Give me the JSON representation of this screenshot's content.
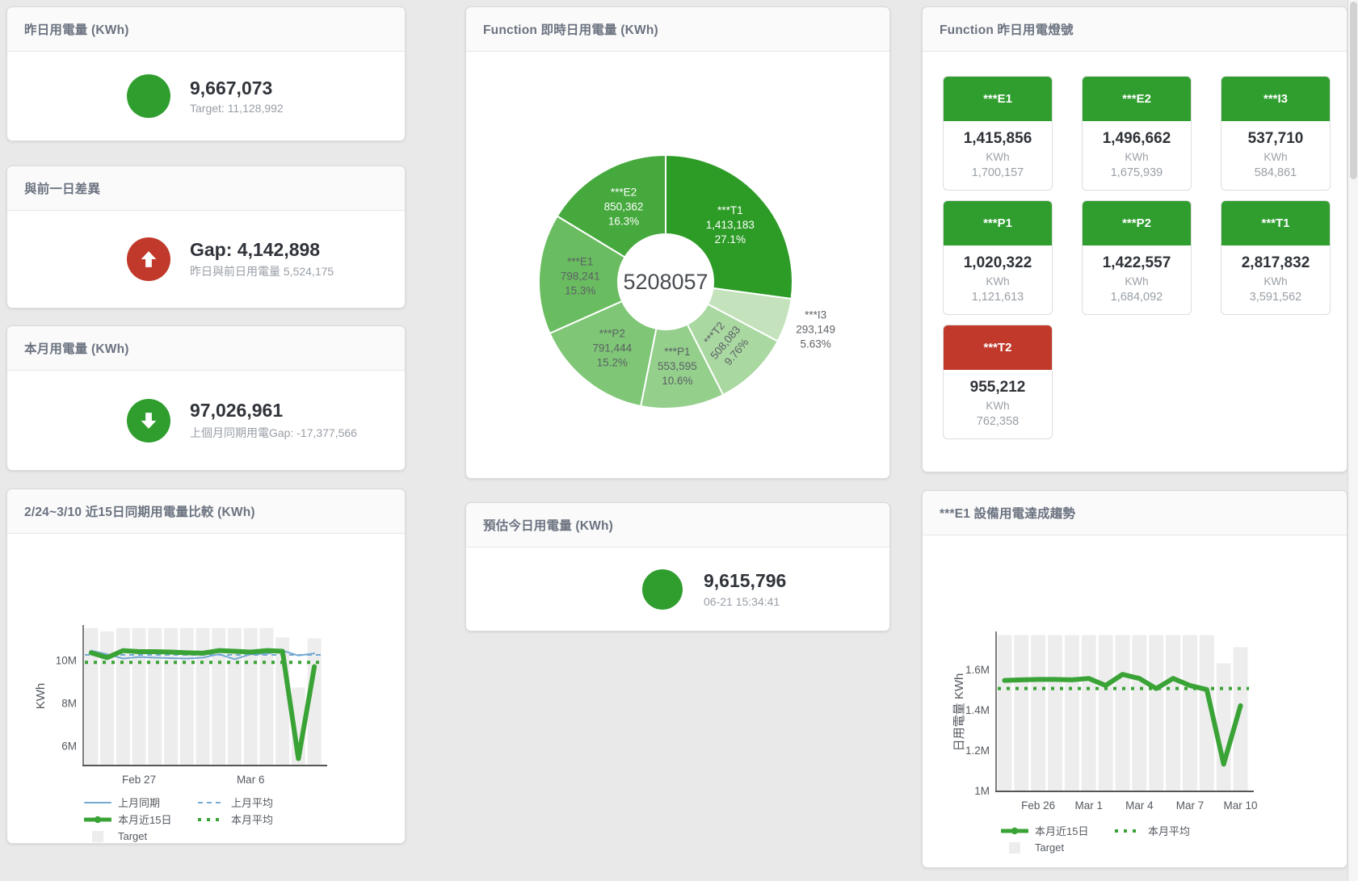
{
  "colors": {
    "green": "#2f9e2f",
    "red": "#c0392b",
    "line_green": "#3aa336",
    "line_blue": "#74a9d3",
    "bar_gray": "#ededed",
    "axis": "#555555",
    "label_dark": "#5b6166",
    "label_white": "#ffffff"
  },
  "panels": {
    "yesterday": {
      "title": "昨日用電量 (KWh)",
      "value": "9,667,073",
      "subtitle": "Target: 11,128,992",
      "status": "green"
    },
    "gap_prev_day": {
      "title": "與前一日差異",
      "value": "Gap: 4,142,898",
      "subtitle": "昨日與前日用電量 5,524,175",
      "status": "red-up"
    },
    "month": {
      "title": "本月用電量 (KWh)",
      "value": "97,026,961",
      "subtitle": "上個月同期用電Gap: -17,377,566",
      "status": "green-down"
    },
    "estimate_today": {
      "title": "預估今日用電量 (KWh)",
      "value": "9,615,796",
      "subtitle": "06-21 15:34:41",
      "status": "green"
    },
    "donut": {
      "title": "Function 即時日用電量 (KWh)"
    },
    "lights": {
      "title": "Function 昨日用電燈號",
      "cards": [
        {
          "label": "***E1",
          "value": "1,415,856",
          "unit": "KWh",
          "target": "1,700,157",
          "status": "green"
        },
        {
          "label": "***E2",
          "value": "1,496,662",
          "unit": "KWh",
          "target": "1,675,939",
          "status": "green"
        },
        {
          "label": "***I3",
          "value": "537,710",
          "unit": "KWh",
          "target": "584,861",
          "status": "green"
        },
        {
          "label": "***P1",
          "value": "1,020,322",
          "unit": "KWh",
          "target": "1,121,613",
          "status": "green"
        },
        {
          "label": "***P2",
          "value": "1,422,557",
          "unit": "KWh",
          "target": "1,684,092",
          "status": "green"
        },
        {
          "label": "***T1",
          "value": "2,817,832",
          "unit": "KWh",
          "target": "3,591,562",
          "status": "green"
        },
        {
          "label": "***T2",
          "value": "955,212",
          "unit": "KWh",
          "target": "762,358",
          "status": "red"
        }
      ]
    },
    "compare15": {
      "title": "2/24~3/10 近15日同期用電量比較 (KWh)"
    },
    "e1trend": {
      "title": "***E1 設備用電達成趨勢"
    }
  },
  "chart_data": [
    {
      "id": "donut",
      "type": "pie",
      "title": "Function 即時日用電量 (KWh)",
      "center_total": "5208057",
      "slices": [
        {
          "name": "***T1",
          "value": 1413183,
          "display": "1,413,183",
          "pct": "27.1%",
          "color": "#2d9c27",
          "text": "#ffffff",
          "placement": "inside",
          "rotate": 0
        },
        {
          "name": "***I3",
          "value": 293149,
          "display": "293,149",
          "pct": "5.63%",
          "color": "#c4e3bc",
          "text": "#5f6368",
          "placement": "outside",
          "rotate": 0
        },
        {
          "name": "***T2",
          "value": 508083,
          "display": "508,083",
          "pct": "9.76%",
          "color": "#aad8a1",
          "text": "#5b6166",
          "placement": "inside",
          "rotate": -50
        },
        {
          "name": "***P1",
          "value": 553595,
          "display": "553,595",
          "pct": "10.6%",
          "color": "#94cf8b",
          "text": "#5b6166",
          "placement": "inside",
          "rotate": 0
        },
        {
          "name": "***P2",
          "value": 791444,
          "display": "791,444",
          "pct": "15.2%",
          "color": "#7fc776",
          "text": "#5b6166",
          "placement": "inside",
          "rotate": 0
        },
        {
          "name": "***E1",
          "value": 798241,
          "display": "798,241",
          "pct": "15.3%",
          "color": "#6abc60",
          "text": "#5b6166",
          "placement": "inside",
          "rotate": 0
        },
        {
          "name": "***E2",
          "value": 850362,
          "display": "850,362",
          "pct": "16.3%",
          "color": "#45a93d",
          "text": "#ffffff",
          "placement": "inside",
          "rotate": 0
        }
      ]
    },
    {
      "id": "compare15",
      "type": "line+bar",
      "title": "2/24~3/10 近15日同期用電量比較 (KWh)",
      "ylabel": "KWh",
      "categories": [
        "2/24",
        "2/25",
        "2/26",
        "2/27",
        "2/28",
        "3/1",
        "3/2",
        "3/3",
        "3/4",
        "3/5",
        "3/6",
        "3/7",
        "3/8",
        "3/9",
        "3/10"
      ],
      "x_ticks": [
        {
          "index": 3,
          "label": "Feb 27"
        },
        {
          "index": 10,
          "label": "Mar 6"
        }
      ],
      "y_ticks": [
        {
          "value": 6000000,
          "label": "6M"
        },
        {
          "value": 8000000,
          "label": "8M"
        },
        {
          "value": 10000000,
          "label": "10M"
        }
      ],
      "ylim": [
        5080000,
        11570000
      ],
      "series": [
        {
          "name": "Target",
          "type": "bar",
          "color": "#ededed",
          "values": [
            11500000,
            11350000,
            11500000,
            11500000,
            11500000,
            11500000,
            11500000,
            11500000,
            11500000,
            11500000,
            11500000,
            11500000,
            11070000,
            8720000,
            11020000
          ]
        },
        {
          "name": "上月同期",
          "type": "line",
          "width": 2,
          "color": "#74a9d3",
          "values": [
            10450000,
            10280000,
            10080000,
            10150000,
            10120000,
            10100000,
            10080000,
            10120000,
            10280000,
            10050000,
            10280000,
            10300000,
            10450000,
            10220000,
            10320000
          ]
        },
        {
          "name": "上月平均",
          "type": "dashed",
          "width": 2,
          "dash": "6 5",
          "color": "#74a9d3",
          "value": 10250000
        },
        {
          "name": "本月近15日",
          "type": "line",
          "width": 6,
          "color": "#3aa336",
          "values": [
            10350000,
            10120000,
            10450000,
            10400000,
            10400000,
            10380000,
            10350000,
            10330000,
            10450000,
            10420000,
            10380000,
            10450000,
            10420000,
            5400000,
            9700000
          ]
        },
        {
          "name": "本月平均",
          "type": "dashed",
          "width": 4,
          "dash": "4 7",
          "color": "#3aa336",
          "value": 9900000
        }
      ],
      "legend": [
        [
          "上月同期",
          "上月平均"
        ],
        [
          "本月近15日",
          "本月平均"
        ],
        [
          "Target"
        ]
      ]
    },
    {
      "id": "e1trend",
      "type": "line+bar",
      "title": "***E1 設備用電達成趨勢",
      "ylabel": "日用電量 KWh",
      "categories": [
        "2/24",
        "2/25",
        "2/26",
        "2/27",
        "2/28",
        "3/1",
        "3/2",
        "3/3",
        "3/4",
        "3/5",
        "3/6",
        "3/7",
        "3/8",
        "3/9",
        "3/10"
      ],
      "x_ticks": [
        {
          "index": 2,
          "label": "Feb 26"
        },
        {
          "index": 5,
          "label": "Mar 1"
        },
        {
          "index": 8,
          "label": "Mar 4"
        },
        {
          "index": 11,
          "label": "Mar 7"
        },
        {
          "index": 14,
          "label": "Mar 10"
        }
      ],
      "y_ticks": [
        {
          "value": 1000000,
          "label": "1M"
        },
        {
          "value": 1200000,
          "label": "1.2M"
        },
        {
          "value": 1400000,
          "label": "1.4M"
        },
        {
          "value": 1600000,
          "label": "1.6M"
        }
      ],
      "ylim": [
        995000,
        1780000
      ],
      "series": [
        {
          "name": "Target",
          "type": "bar",
          "color": "#ededed",
          "values": [
            1770000,
            1770000,
            1770000,
            1770000,
            1770000,
            1770000,
            1770000,
            1770000,
            1770000,
            1770000,
            1770000,
            1770000,
            1770000,
            1630000,
            1710000
          ]
        },
        {
          "name": "本月近15日",
          "type": "line",
          "width": 6,
          "color": "#3aa336",
          "values": [
            1545000,
            1548000,
            1550000,
            1550000,
            1548000,
            1555000,
            1520000,
            1575000,
            1555000,
            1505000,
            1555000,
            1520000,
            1500000,
            1130000,
            1420000
          ]
        },
        {
          "name": "本月平均",
          "type": "dashed",
          "width": 4,
          "dash": "4 7",
          "color": "#3aa336",
          "value": 1505000
        }
      ],
      "legend": [
        [
          "本月近15日",
          "本月平均"
        ],
        [
          "Target"
        ]
      ]
    }
  ]
}
